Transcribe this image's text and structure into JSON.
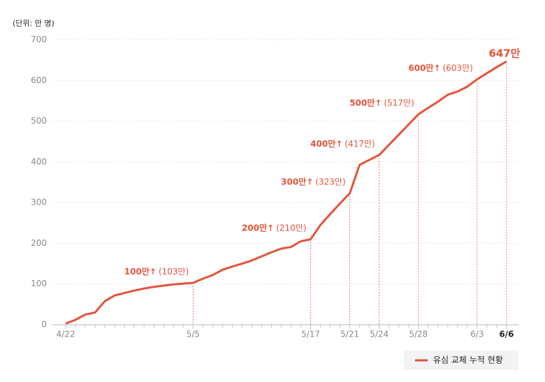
{
  "chart_data": {
    "type": "line",
    "subtitle": "(단위: 만 명)",
    "categories": [
      "4/22",
      null,
      null,
      null,
      null,
      null,
      null,
      null,
      null,
      null,
      null,
      null,
      null,
      "5/5",
      null,
      null,
      null,
      null,
      null,
      null,
      null,
      null,
      null,
      null,
      null,
      "5/17",
      null,
      null,
      null,
      "5/21",
      null,
      null,
      "5/24",
      null,
      null,
      null,
      "5/28",
      null,
      null,
      null,
      null,
      null,
      "6/3",
      null,
      null,
      "6/6"
    ],
    "series": [
      {
        "name": "유심 교체 누적 현황",
        "color": "#e4533a",
        "values": [
          3,
          12,
          25,
          30,
          58,
          72,
          78,
          84,
          89,
          93,
          96,
          99,
          101,
          103,
          113,
          122,
          135,
          143,
          150,
          158,
          168,
          178,
          187,
          191,
          205,
          210,
          245,
          272,
          298,
          323,
          393,
          405,
          417,
          442,
          467,
          492,
          517,
          533,
          548,
          565,
          573,
          585,
          603,
          618,
          633,
          647
        ],
        "milestones": [
          null,
          null,
          null,
          null,
          null,
          null,
          null,
          null,
          null,
          null,
          null,
          null,
          null,
          "100만↑",
          null,
          null,
          null,
          null,
          null,
          null,
          null,
          null,
          null,
          null,
          null,
          "200만↑",
          null,
          null,
          null,
          "300만↑",
          null,
          null,
          "400만↑",
          null,
          null,
          null,
          "500만↑",
          null,
          null,
          null,
          null,
          null,
          "600만↑",
          null,
          null,
          null
        ],
        "value_labels": [
          null,
          null,
          null,
          null,
          null,
          null,
          null,
          null,
          null,
          null,
          null,
          null,
          null,
          "(103만)",
          null,
          null,
          null,
          null,
          null,
          null,
          null,
          null,
          null,
          null,
          null,
          "(210만)",
          null,
          null,
          null,
          "(323만)",
          null,
          null,
          "(417만)",
          null,
          null,
          null,
          "(517만)",
          null,
          null,
          null,
          null,
          null,
          "(603만)",
          null,
          null,
          "647만"
        ]
      }
    ],
    "ylim": [
      0,
      700
    ],
    "yticks": [
      0,
      100,
      200,
      300,
      400,
      500,
      600,
      700
    ],
    "grid": true,
    "legend": "bottom-right"
  }
}
